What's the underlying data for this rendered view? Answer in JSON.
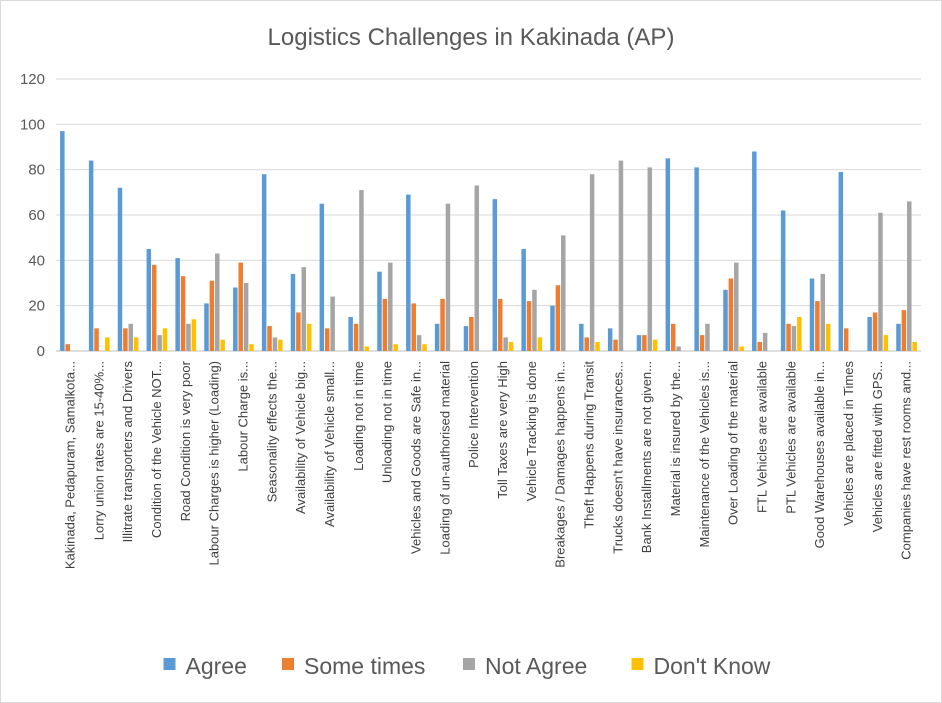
{
  "chart_data": {
    "type": "bar",
    "title": "Logistics Challenges in Kakinada (AP)",
    "xlabel": "",
    "ylabel": "",
    "ylim": [
      0,
      120
    ],
    "yticks": [
      0,
      20,
      40,
      60,
      80,
      100,
      120
    ],
    "grid": true,
    "legend_position": "bottom",
    "categories": [
      "Kakinada, Pedapuram, Samalkota...",
      "Lorry union rates are 15-40%...",
      "Illitrate transporters and Drivers",
      "Condition of the Vehicle NOT...",
      "Road Condition is very poor",
      "Labour Charges is higher (Loading)",
      "Labour Charge is...",
      "Seasonality effects the...",
      "Availability of Vehicle big...",
      "Availability of Vehicle small...",
      "Loading not in time",
      "Unloading not in time",
      "Vehicles and Goods are Safe in...",
      "Loading of un-authorised material",
      "Police Intervention",
      "Toll Taxes are very High",
      "Vehicle Tracking is done",
      "Breakages / Damages happens in...",
      "Theft Happens during Transit",
      "Trucks doesn't have insurances...",
      "Bank Installments are not given...",
      "Material is insured by the...",
      "Maintenance of the Vehicles is...",
      "Over Loading of the material",
      "FTL Vehicles are available",
      "PTL Vehicles are available",
      "Good Warehouses available in...",
      "Vehicles are placed in Times",
      "Vehicles are fitted with GPS...",
      "Companies have rest rooms and..."
    ],
    "series": [
      {
        "name": "Agree",
        "color": "#5B9BD5",
        "values": [
          97,
          84,
          72,
          45,
          41,
          21,
          28,
          78,
          34,
          65,
          15,
          35,
          69,
          12,
          11,
          67,
          45,
          20,
          12,
          10,
          7,
          85,
          81,
          27,
          88,
          62,
          32,
          79,
          15,
          12
        ]
      },
      {
        "name": "Some times",
        "color": "#ED7D31",
        "values": [
          3,
          10,
          10,
          38,
          33,
          31,
          39,
          11,
          17,
          10,
          12,
          23,
          21,
          23,
          15,
          23,
          22,
          29,
          6,
          5,
          7,
          12,
          7,
          32,
          4,
          12,
          22,
          10,
          17,
          18
        ]
      },
      {
        "name": "Not Agree",
        "color": "#A5A5A5",
        "values": [
          0,
          0,
          12,
          7,
          12,
          43,
          30,
          6,
          37,
          24,
          71,
          39,
          7,
          65,
          73,
          6,
          27,
          51,
          78,
          84,
          81,
          2,
          12,
          39,
          8,
          11,
          34,
          0,
          61,
          66
        ]
      },
      {
        "name": "Don't Know",
        "color": "#FFC000",
        "values": [
          0,
          6,
          6,
          10,
          14,
          5,
          3,
          5,
          12,
          0,
          2,
          3,
          3,
          0,
          0,
          4,
          6,
          0,
          4,
          0,
          5,
          0,
          0,
          2,
          0,
          15,
          12,
          0,
          7,
          4
        ]
      }
    ]
  }
}
